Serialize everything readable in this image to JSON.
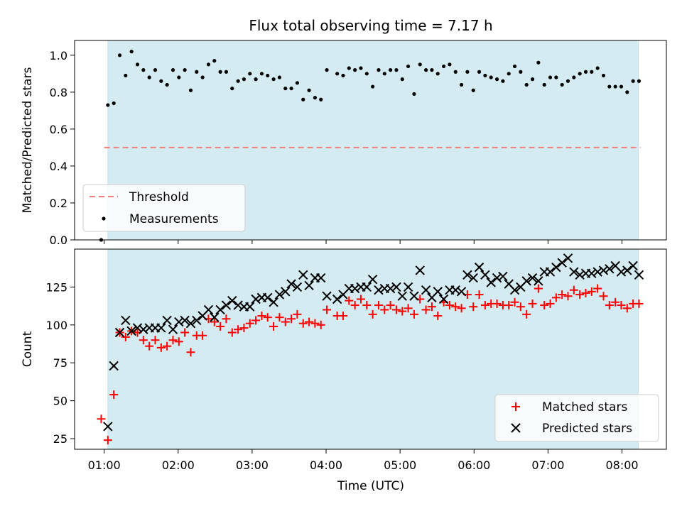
{
  "chart_data": [
    {
      "type": "scatter",
      "title": "Flux total observing time = 7.17 h",
      "xlabel": "",
      "ylabel": "Matched/Predicted stars",
      "xlim": [
        0.6,
        8.6
      ],
      "ylim": [
        0.0,
        1.08
      ],
      "yticks": [
        0.0,
        0.2,
        0.4,
        0.6,
        0.8,
        1.0
      ],
      "ytick_labels": [
        "0.0",
        "0.2",
        "0.4",
        "0.6",
        "0.8",
        "1.0"
      ],
      "observing_window": [
        1.05,
        8.22
      ],
      "threshold": {
        "label": "Threshold",
        "value": 0.5,
        "x": [
          1.0,
          8.25
        ],
        "color": "#f08080"
      },
      "series": [
        {
          "name": "Measurements",
          "marker": "dot",
          "color": "#000000",
          "x": [
            0.96,
            1.05,
            1.13,
            1.21,
            1.29,
            1.37,
            1.45,
            1.53,
            1.61,
            1.69,
            1.77,
            1.85,
            1.93,
            2.01,
            2.09,
            2.17,
            2.25,
            2.33,
            2.41,
            2.49,
            2.57,
            2.65,
            2.73,
            2.81,
            2.89,
            2.97,
            3.05,
            3.13,
            3.21,
            3.29,
            3.37,
            3.45,
            3.53,
            3.61,
            3.69,
            3.77,
            3.85,
            3.93,
            4.01,
            4.15,
            4.23,
            4.31,
            4.39,
            4.47,
            4.55,
            4.63,
            4.71,
            4.79,
            4.87,
            4.95,
            5.03,
            5.11,
            5.19,
            5.27,
            5.35,
            5.43,
            5.51,
            5.59,
            5.67,
            5.75,
            5.83,
            5.91,
            5.99,
            6.07,
            6.15,
            6.23,
            6.31,
            6.39,
            6.47,
            6.55,
            6.63,
            6.71,
            6.79,
            6.87,
            6.95,
            7.03,
            7.11,
            7.19,
            7.27,
            7.35,
            7.43,
            7.51,
            7.59,
            7.67,
            7.75,
            7.83,
            7.91,
            7.99,
            8.07,
            8.15,
            8.23
          ],
          "y": [
            0.0,
            0.73,
            0.74,
            1.0,
            0.89,
            1.02,
            0.95,
            0.92,
            0.88,
            0.92,
            0.86,
            0.84,
            0.92,
            0.88,
            0.92,
            0.81,
            0.91,
            0.88,
            0.95,
            0.97,
            0.91,
            0.91,
            0.82,
            0.86,
            0.87,
            0.9,
            0.87,
            0.9,
            0.89,
            0.87,
            0.88,
            0.82,
            0.82,
            0.85,
            0.76,
            0.81,
            0.77,
            0.76,
            0.92,
            0.9,
            0.89,
            0.93,
            0.92,
            0.93,
            0.9,
            0.83,
            0.92,
            0.9,
            0.92,
            0.92,
            0.87,
            0.94,
            0.79,
            0.95,
            0.92,
            0.92,
            0.9,
            0.94,
            0.95,
            0.91,
            0.84,
            0.91,
            0.81,
            0.91,
            0.89,
            0.88,
            0.87,
            0.86,
            0.9,
            0.94,
            0.91,
            0.84,
            0.87,
            0.96,
            0.84,
            0.88,
            0.88,
            0.84,
            0.86,
            0.88,
            0.9,
            0.91,
            0.91,
            0.93,
            0.89,
            0.83,
            0.83,
            0.83,
            0.8,
            0.86,
            0.86
          ]
        }
      ],
      "legend": {
        "location": "lower-left",
        "entries": [
          "Threshold",
          "Measurements"
        ]
      }
    },
    {
      "type": "scatter",
      "title": "",
      "xlabel": "Time (UTC)",
      "ylabel": "Count",
      "xlim": [
        0.6,
        8.6
      ],
      "ylim": [
        18,
        150
      ],
      "yticks": [
        25,
        50,
        75,
        100,
        125
      ],
      "ytick_labels": [
        "25",
        "50",
        "75",
        "100",
        "125"
      ],
      "xticks": [
        1,
        2,
        3,
        4,
        5,
        6,
        7,
        8
      ],
      "xtick_labels": [
        "01:00",
        "02:00",
        "03:00",
        "04:00",
        "05:00",
        "06:00",
        "07:00",
        "08:00"
      ],
      "observing_window": [
        1.05,
        8.22
      ],
      "series": [
        {
          "name": "Matched stars",
          "marker": "plus",
          "color": "#ff0000",
          "x": [
            0.96,
            1.05,
            1.13,
            1.21,
            1.29,
            1.37,
            1.45,
            1.53,
            1.61,
            1.69,
            1.77,
            1.85,
            1.93,
            2.01,
            2.09,
            2.17,
            2.25,
            2.33,
            2.41,
            2.49,
            2.57,
            2.65,
            2.73,
            2.81,
            2.89,
            2.97,
            3.05,
            3.13,
            3.21,
            3.29,
            3.37,
            3.45,
            3.53,
            3.61,
            3.69,
            3.77,
            3.85,
            3.93,
            4.01,
            4.15,
            4.23,
            4.31,
            4.39,
            4.47,
            4.55,
            4.63,
            4.71,
            4.79,
            4.87,
            4.95,
            5.03,
            5.11,
            5.19,
            5.27,
            5.35,
            5.43,
            5.51,
            5.59,
            5.67,
            5.75,
            5.83,
            5.91,
            5.99,
            6.07,
            6.15,
            6.23,
            6.31,
            6.39,
            6.47,
            6.55,
            6.63,
            6.71,
            6.79,
            6.87,
            6.95,
            7.03,
            7.11,
            7.19,
            7.27,
            7.35,
            7.43,
            7.51,
            7.59,
            7.67,
            7.75,
            7.83,
            7.91,
            7.99,
            8.07,
            8.15,
            8.23
          ],
          "y": [
            38,
            24,
            54,
            95,
            92,
            96,
            95,
            90,
            86,
            90,
            85,
            86,
            90,
            89,
            95,
            82,
            93,
            93,
            104,
            102,
            99,
            104,
            95,
            97,
            98,
            101,
            103,
            106,
            105,
            99,
            105,
            102,
            104,
            107,
            101,
            102,
            101,
            100,
            110,
            106,
            106,
            116,
            113,
            117,
            113,
            107,
            113,
            110,
            113,
            110,
            109,
            111,
            107,
            117,
            110,
            112,
            106,
            115,
            113,
            112,
            111,
            120,
            112,
            120,
            113,
            114,
            114,
            113,
            113,
            115,
            112,
            107,
            114,
            124,
            113,
            114,
            118,
            120,
            119,
            123,
            120,
            121,
            122,
            124,
            119,
            113,
            115,
            113,
            111,
            114,
            114
          ]
        },
        {
          "name": "Predicted stars",
          "marker": "x",
          "color": "#000000",
          "x": [
            1.05,
            1.13,
            1.21,
            1.29,
            1.37,
            1.45,
            1.53,
            1.61,
            1.69,
            1.77,
            1.85,
            1.93,
            2.01,
            2.09,
            2.17,
            2.25,
            2.33,
            2.41,
            2.49,
            2.57,
            2.65,
            2.73,
            2.81,
            2.89,
            2.97,
            3.05,
            3.13,
            3.21,
            3.29,
            3.37,
            3.45,
            3.53,
            3.61,
            3.69,
            3.77,
            3.85,
            3.93,
            4.01,
            4.15,
            4.23,
            4.31,
            4.39,
            4.47,
            4.55,
            4.63,
            4.71,
            4.79,
            4.87,
            4.95,
            5.03,
            5.11,
            5.19,
            5.27,
            5.35,
            5.43,
            5.51,
            5.59,
            5.67,
            5.75,
            5.83,
            5.91,
            5.99,
            6.07,
            6.15,
            6.23,
            6.31,
            6.39,
            6.47,
            6.55,
            6.63,
            6.71,
            6.79,
            6.87,
            6.95,
            7.03,
            7.11,
            7.19,
            7.27,
            7.35,
            7.43,
            7.51,
            7.59,
            7.67,
            7.75,
            7.83,
            7.91,
            7.99,
            8.07,
            8.15,
            8.23
          ],
          "y": [
            33,
            73,
            95,
            103,
            96,
            98,
            97,
            98,
            98,
            98,
            103,
            97,
            102,
            103,
            101,
            103,
            106,
            110,
            105,
            110,
            113,
            116,
            113,
            112,
            112,
            117,
            118,
            118,
            115,
            120,
            122,
            127,
            125,
            133,
            126,
            131,
            131,
            119,
            117,
            120,
            124,
            124,
            125,
            125,
            130,
            123,
            124,
            124,
            125,
            119,
            125,
            119,
            136,
            123,
            118,
            122,
            117,
            123,
            123,
            122,
            133,
            131,
            138,
            133,
            128,
            131,
            132,
            127,
            123,
            125,
            129,
            131,
            129,
            135,
            135,
            138,
            141,
            144,
            135,
            133,
            134,
            134,
            135,
            136,
            137,
            139,
            135,
            136,
            139,
            133
          ]
        }
      ],
      "legend": {
        "location": "lower-right",
        "entries": [
          "Matched stars",
          "Predicted stars"
        ]
      }
    }
  ],
  "colors": {
    "window_fill": "#d4ebf1",
    "window_edge": "#bfe0ea",
    "threshold": "#f08080",
    "matched": "#ff0000",
    "predicted": "#000000"
  }
}
